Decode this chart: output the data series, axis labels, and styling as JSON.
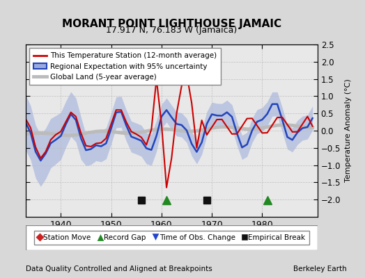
{
  "title": "MORANT POINT LIGHTHOUSE JAMAIC",
  "subtitle": "17.917 N, 76.183 W (Jamaica)",
  "ylabel": "Temperature Anomaly (°C)",
  "footnote_left": "Data Quality Controlled and Aligned at Breakpoints",
  "footnote_right": "Berkeley Earth",
  "xlim": [
    1933,
    1991
  ],
  "ylim": [
    -2.5,
    2.5
  ],
  "yticks": [
    -2,
    -1.5,
    -1,
    -0.5,
    0,
    0.5,
    1,
    1.5,
    2,
    2.5
  ],
  "xticks": [
    1940,
    1950,
    1960,
    1970,
    1980
  ],
  "bg_color": "#d8d8d8",
  "plot_bg_color": "#e8e8e8",
  "regional_color": "#2244bb",
  "regional_shade_color": "#99aadd",
  "station_color": "#cc0000",
  "global_color": "#bbbbbb",
  "markers": {
    "empirical_break": {
      "years": [
        1956,
        1969
      ],
      "color": "#111111",
      "marker": "s",
      "size": 7
    },
    "record_gap": {
      "years": [
        1961,
        1981
      ],
      "color": "#228822",
      "marker": "^",
      "size": 9
    },
    "time_obs_change": {
      "years": [],
      "color": "#2244cc",
      "marker": "v",
      "size": 9
    },
    "station_move": {
      "years": [],
      "color": "#cc2222",
      "marker": "D",
      "size": 7
    }
  }
}
